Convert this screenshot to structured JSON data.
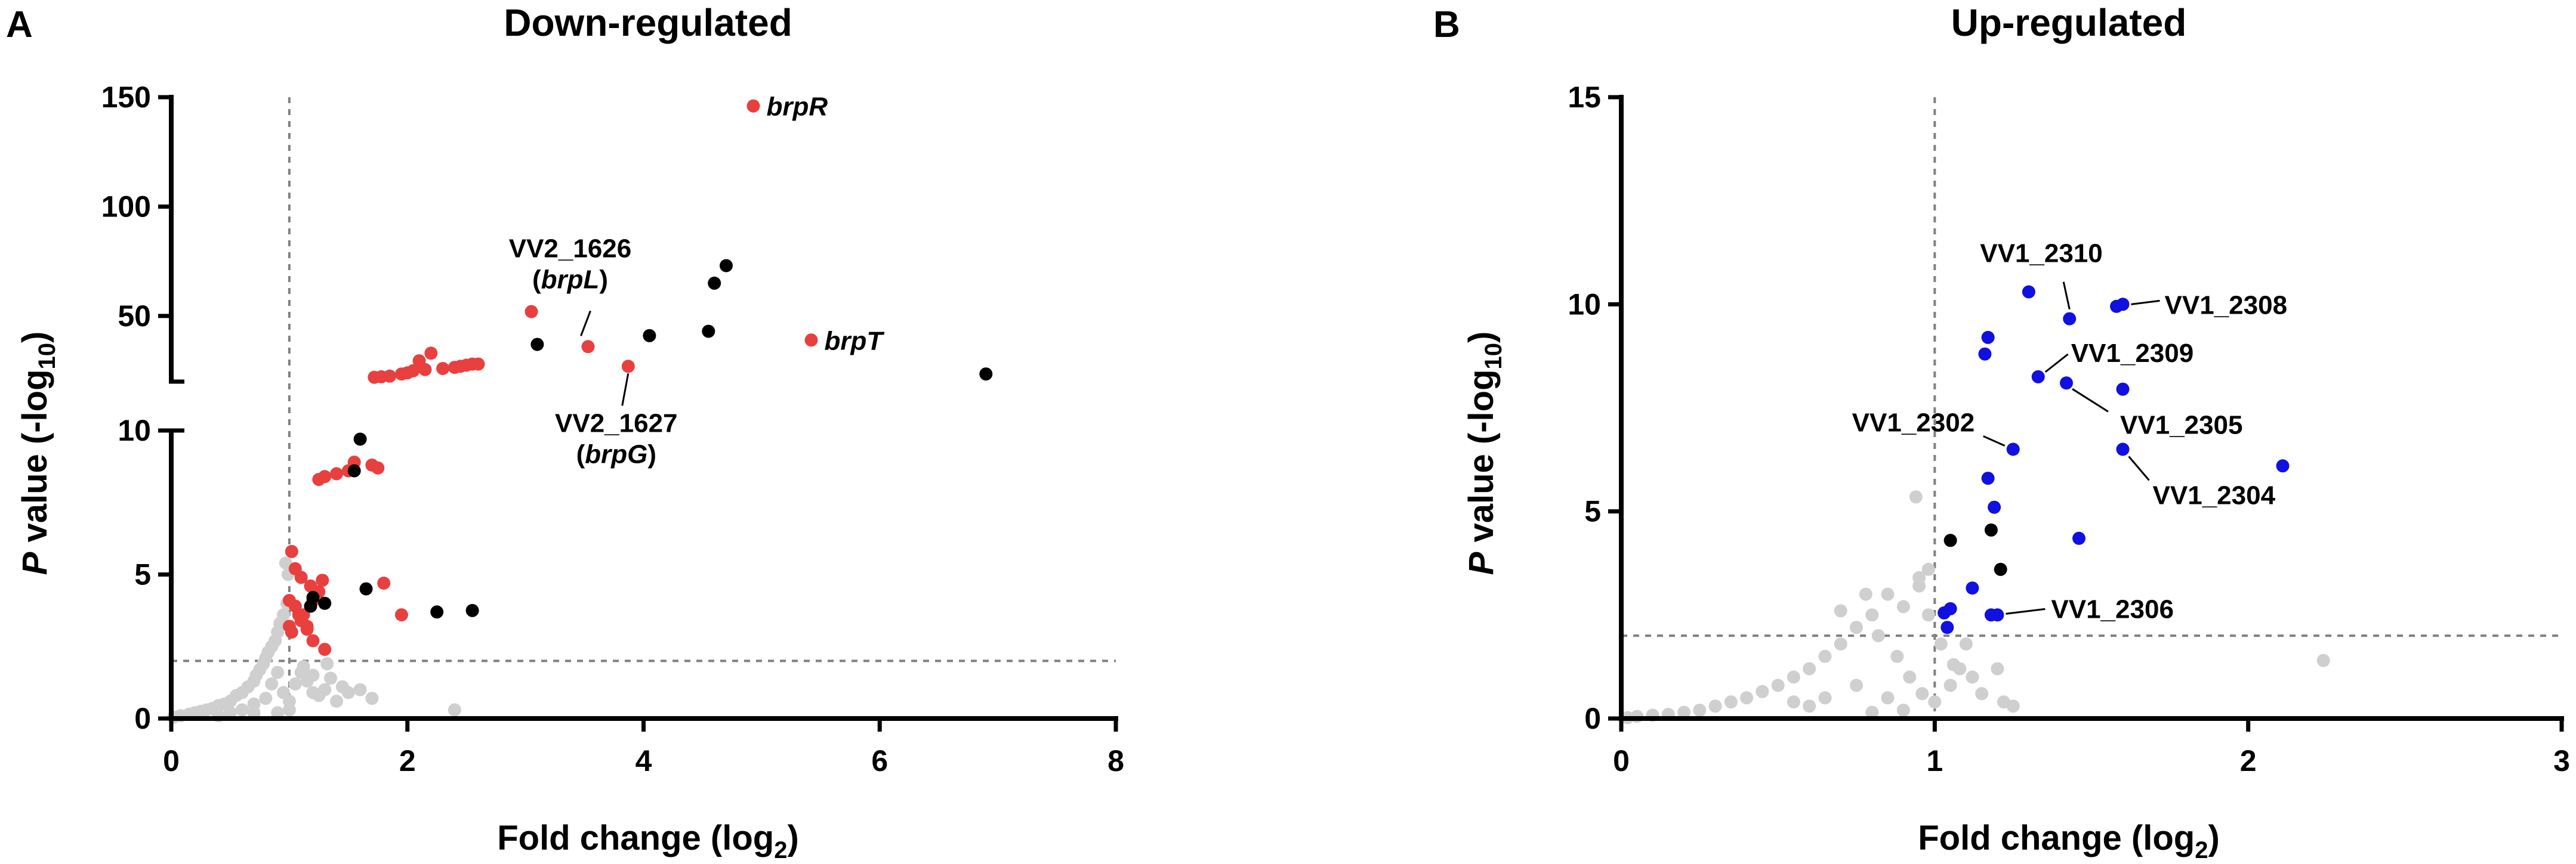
{
  "colors": {
    "not_significant": "#cfcfcf",
    "significant_other": "#000000",
    "down_highlight": "#e8403f",
    "up_highlight": "#1010e0",
    "threshold_line": "#808080"
  },
  "chart_data": [
    {
      "panel": "A",
      "type": "scatter",
      "title": "Down-regulated",
      "xlabel": "Fold change (log",
      "xlabel_sub": "2",
      "xlabel_end": ")",
      "ylabel_p": "P",
      "ylabel": " value (-log",
      "ylabel_sub": "10",
      "ylabel_end": ")",
      "xlim": [
        0,
        8
      ],
      "x_ticks": [
        0,
        2,
        4,
        6,
        8
      ],
      "x_tick_labels": [
        "0",
        "2",
        "4",
        "6",
        "8"
      ],
      "y_axis_break": {
        "lower_range": [
          0,
          10
        ],
        "upper_range": [
          20,
          150
        ]
      },
      "y_ticks_lower": [
        0,
        5,
        10
      ],
      "y_ticks_upper": [
        50,
        100,
        150
      ],
      "y_tick_labels_lower": [
        "0",
        "5",
        "10"
      ],
      "y_tick_labels_upper": [
        "50",
        "100",
        "150"
      ],
      "thresholds": {
        "x": 1,
        "y": 2
      },
      "grid": false,
      "series": [
        {
          "group": "highlighted",
          "color": "#e8403f",
          "points": [
            [
              1.02,
              5.8
            ],
            [
              1.05,
              5.2
            ],
            [
              1.1,
              4.9
            ],
            [
              1.0,
              4.1
            ],
            [
              1.05,
              3.9
            ],
            [
              1.1,
              3.4
            ],
            [
              1.0,
              3.2
            ],
            [
              1.02,
              3.0
            ],
            [
              1.08,
              3.6
            ],
            [
              1.15,
              3.2
            ],
            [
              1.18,
              4.6
            ],
            [
              1.2,
              4.1
            ],
            [
              1.25,
              4.4
            ],
            [
              1.28,
              4.8
            ],
            [
              1.15,
              3.1
            ],
            [
              1.12,
              3.6
            ],
            [
              1.2,
              2.7
            ],
            [
              1.3,
              2.4
            ],
            [
              1.25,
              8.3
            ],
            [
              1.3,
              8.4
            ],
            [
              1.4,
              8.5
            ],
            [
              1.5,
              8.6
            ],
            [
              1.55,
              8.9
            ],
            [
              1.7,
              8.8
            ],
            [
              1.75,
              8.7
            ],
            [
              1.8,
              4.7
            ],
            [
              1.95,
              3.6
            ],
            [
              1.72,
              22
            ],
            [
              1.78,
              22.2
            ],
            [
              1.85,
              22.5
            ],
            [
              1.95,
              23.5
            ],
            [
              2.0,
              24
            ],
            [
              2.05,
              25
            ],
            [
              2.15,
              25.5
            ],
            [
              2.3,
              26
            ],
            [
              2.4,
              26.5
            ],
            [
              2.45,
              27
            ],
            [
              2.5,
              27.5
            ],
            [
              2.55,
              28
            ],
            [
              2.6,
              28
            ],
            [
              2.2,
              33
            ],
            [
              2.1,
              29.5
            ],
            [
              3.05,
              52
            ]
          ]
        },
        {
          "group": "significant",
          "color": "#000000",
          "points": [
            [
              1.6,
              9.7
            ],
            [
              1.55,
              8.6
            ],
            [
              1.65,
              4.5
            ],
            [
              1.2,
              4.2
            ],
            [
              1.3,
              4.0
            ],
            [
              1.18,
              3.9
            ],
            [
              2.25,
              3.7
            ],
            [
              2.55,
              3.75
            ],
            [
              3.1,
              37
            ],
            [
              4.05,
              41
            ],
            [
              4.55,
              43
            ],
            [
              4.6,
              65
            ],
            [
              4.7,
              73
            ],
            [
              6.9,
              23.5
            ]
          ]
        },
        {
          "group": "not_significant",
          "color": "#cfcfcf",
          "points": [
            [
              0.02,
              0.05
            ],
            [
              0.08,
              0.1
            ],
            [
              0.15,
              0.15
            ],
            [
              0.2,
              0.2
            ],
            [
              0.25,
              0.25
            ],
            [
              0.3,
              0.3
            ],
            [
              0.35,
              0.35
            ],
            [
              0.4,
              0.45
            ],
            [
              0.45,
              0.5
            ],
            [
              0.5,
              0.6
            ],
            [
              0.55,
              0.8
            ],
            [
              0.6,
              0.9
            ],
            [
              0.65,
              1.1
            ],
            [
              0.7,
              1.3
            ],
            [
              0.72,
              1.5
            ],
            [
              0.75,
              1.7
            ],
            [
              0.78,
              1.9
            ],
            [
              0.8,
              2.1
            ],
            [
              0.82,
              2.3
            ],
            [
              0.85,
              2.5
            ],
            [
              0.88,
              2.7
            ],
            [
              0.9,
              3.0
            ],
            [
              0.92,
              3.3
            ],
            [
              0.95,
              3.6
            ],
            [
              0.98,
              4.0
            ],
            [
              0.97,
              5.4
            ],
            [
              0.99,
              5.0
            ],
            [
              0.6,
              0.3
            ],
            [
              0.7,
              0.5
            ],
            [
              0.8,
              0.7
            ],
            [
              0.85,
              1.2
            ],
            [
              0.9,
              1.6
            ],
            [
              0.95,
              0.9
            ],
            [
              1.0,
              0.6
            ],
            [
              1.05,
              1.2
            ],
            [
              1.1,
              1.6
            ],
            [
              1.15,
              1.3
            ],
            [
              1.2,
              0.9
            ],
            [
              1.25,
              0.8
            ],
            [
              1.3,
              1.0
            ],
            [
              1.35,
              1.4
            ],
            [
              1.4,
              0.6
            ],
            [
              1.45,
              1.1
            ],
            [
              1.5,
              0.9
            ],
            [
              1.6,
              1.0
            ],
            [
              1.7,
              0.7
            ],
            [
              2.4,
              0.3
            ],
            [
              0.9,
              0.2
            ],
            [
              1.0,
              0.3
            ],
            [
              1.12,
              1.8
            ],
            [
              1.2,
              1.5
            ],
            [
              0.5,
              0.2
            ],
            [
              0.7,
              0.2
            ],
            [
              0.4,
              0.1
            ],
            [
              1.32,
              1.9
            ]
          ]
        }
      ],
      "annotations": [
        {
          "text": "brpR",
          "x": 4.93,
          "y": 146,
          "italic": true
        },
        {
          "text": "brpT",
          "x": 5.42,
          "y": 39,
          "italic": true
        },
        {
          "text": "VV2_1626",
          "x": 3.53,
          "y": 36,
          "italic": false
        },
        {
          "text_pre": "(",
          "text_italic": "brpL",
          "text_post": ")",
          "x": 3.53,
          "y": 36
        },
        {
          "text": "VV2_1627",
          "x": 3.87,
          "y": 27,
          "italic": false
        },
        {
          "text_pre": "(",
          "text_italic": "brpG",
          "text_post": ")",
          "x": 3.87,
          "y": 27
        }
      ],
      "highlight_points": [
        {
          "label": "brpR",
          "x": 4.93,
          "y": 146
        },
        {
          "label": "brpT",
          "x": 5.42,
          "y": 39
        },
        {
          "label": "VV2_1626",
          "x": 3.53,
          "y": 36
        },
        {
          "label": "VV2_1627",
          "x": 3.87,
          "y": 27
        }
      ]
    },
    {
      "panel": "B",
      "type": "scatter",
      "title": "Up-regulated",
      "xlabel": "Fold change (log",
      "xlabel_sub": "2",
      "xlabel_end": ")",
      "ylabel_p": "P",
      "ylabel": " value (-log",
      "ylabel_sub": "10",
      "ylabel_end": ")",
      "xlim": [
        0,
        3
      ],
      "ylim": [
        0,
        15
      ],
      "x_ticks": [
        0,
        1,
        2,
        3
      ],
      "x_tick_labels": [
        "0",
        "1",
        "2",
        "3"
      ],
      "y_ticks": [
        0,
        5,
        10,
        15
      ],
      "y_tick_labels": [
        "0",
        "5",
        "10",
        "15"
      ],
      "thresholds": {
        "x": 1,
        "y": 2
      },
      "grid": false,
      "series": [
        {
          "group": "highlighted",
          "color": "#1010e0",
          "points": [
            [
              1.3,
              10.3
            ],
            [
              1.43,
              9.65
            ],
            [
              1.58,
              9.95
            ],
            [
              1.6,
              10.0
            ],
            [
              1.17,
              9.2
            ],
            [
              1.16,
              8.8
            ],
            [
              1.33,
              8.25
            ],
            [
              1.42,
              8.1
            ],
            [
              1.6,
              7.95
            ],
            [
              1.25,
              6.5
            ],
            [
              1.6,
              6.5
            ],
            [
              2.11,
              6.1
            ],
            [
              1.17,
              5.8
            ],
            [
              1.19,
              5.1
            ],
            [
              1.46,
              4.35
            ],
            [
              1.12,
              3.15
            ],
            [
              1.05,
              2.65
            ],
            [
              1.03,
              2.55
            ],
            [
              1.04,
              2.2
            ],
            [
              1.18,
              2.5
            ],
            [
              1.2,
              2.5
            ]
          ]
        },
        {
          "group": "significant",
          "color": "#000000",
          "points": [
            [
              1.05,
              4.3
            ],
            [
              1.18,
              4.55
            ],
            [
              1.21,
              3.6
            ]
          ]
        },
        {
          "group": "not_significant",
          "color": "#cfcfcf",
          "points": [
            [
              0.02,
              0.02
            ],
            [
              0.05,
              0.05
            ],
            [
              0.1,
              0.08
            ],
            [
              0.15,
              0.1
            ],
            [
              0.2,
              0.15
            ],
            [
              0.25,
              0.2
            ],
            [
              0.3,
              0.3
            ],
            [
              0.35,
              0.4
            ],
            [
              0.4,
              0.5
            ],
            [
              0.45,
              0.65
            ],
            [
              0.5,
              0.8
            ],
            [
              0.55,
              1.0
            ],
            [
              0.6,
              1.2
            ],
            [
              0.65,
              1.5
            ],
            [
              0.7,
              1.8
            ],
            [
              0.75,
              2.2
            ],
            [
              0.8,
              2.5
            ],
            [
              0.85,
              3.0
            ],
            [
              0.9,
              2.7
            ],
            [
              0.95,
              3.2
            ],
            [
              0.98,
              3.6
            ],
            [
              0.94,
              5.35
            ],
            [
              0.95,
              3.4
            ],
            [
              0.7,
              2.6
            ],
            [
              0.78,
              3.0
            ],
            [
              0.82,
              2.0
            ],
            [
              0.88,
              1.5
            ],
            [
              0.92,
              1.0
            ],
            [
              0.96,
              0.6
            ],
            [
              1.0,
              0.4
            ],
            [
              1.05,
              0.8
            ],
            [
              1.08,
              1.2
            ],
            [
              1.1,
              1.8
            ],
            [
              1.12,
              1.0
            ],
            [
              1.15,
              0.6
            ],
            [
              1.2,
              1.2
            ],
            [
              1.22,
              0.4
            ],
            [
              1.25,
              0.3
            ],
            [
              0.85,
              0.5
            ],
            [
              0.75,
              0.8
            ],
            [
              0.65,
              0.5
            ],
            [
              0.6,
              0.3
            ],
            [
              0.55,
              0.4
            ],
            [
              2.24,
              1.4
            ],
            [
              0.98,
              2.5
            ],
            [
              1.02,
              1.8
            ],
            [
              1.06,
              1.3
            ],
            [
              0.9,
              0.2
            ],
            [
              0.8,
              0.15
            ]
          ]
        }
      ],
      "annotations": [
        {
          "text": "VV1_2310",
          "x": 1.43,
          "y": 9.65
        },
        {
          "text": "VV1_2308",
          "x": 1.6,
          "y": 10.0
        },
        {
          "text": "VV1_2309",
          "x": 1.33,
          "y": 8.25
        },
        {
          "text": "VV1_2305",
          "x": 1.42,
          "y": 8.1
        },
        {
          "text": "VV1_2302",
          "x": 1.25,
          "y": 6.5
        },
        {
          "text": "VV1_2304",
          "x": 1.6,
          "y": 6.5
        },
        {
          "text": "VV1_2306",
          "x": 1.2,
          "y": 2.5
        }
      ]
    }
  ]
}
